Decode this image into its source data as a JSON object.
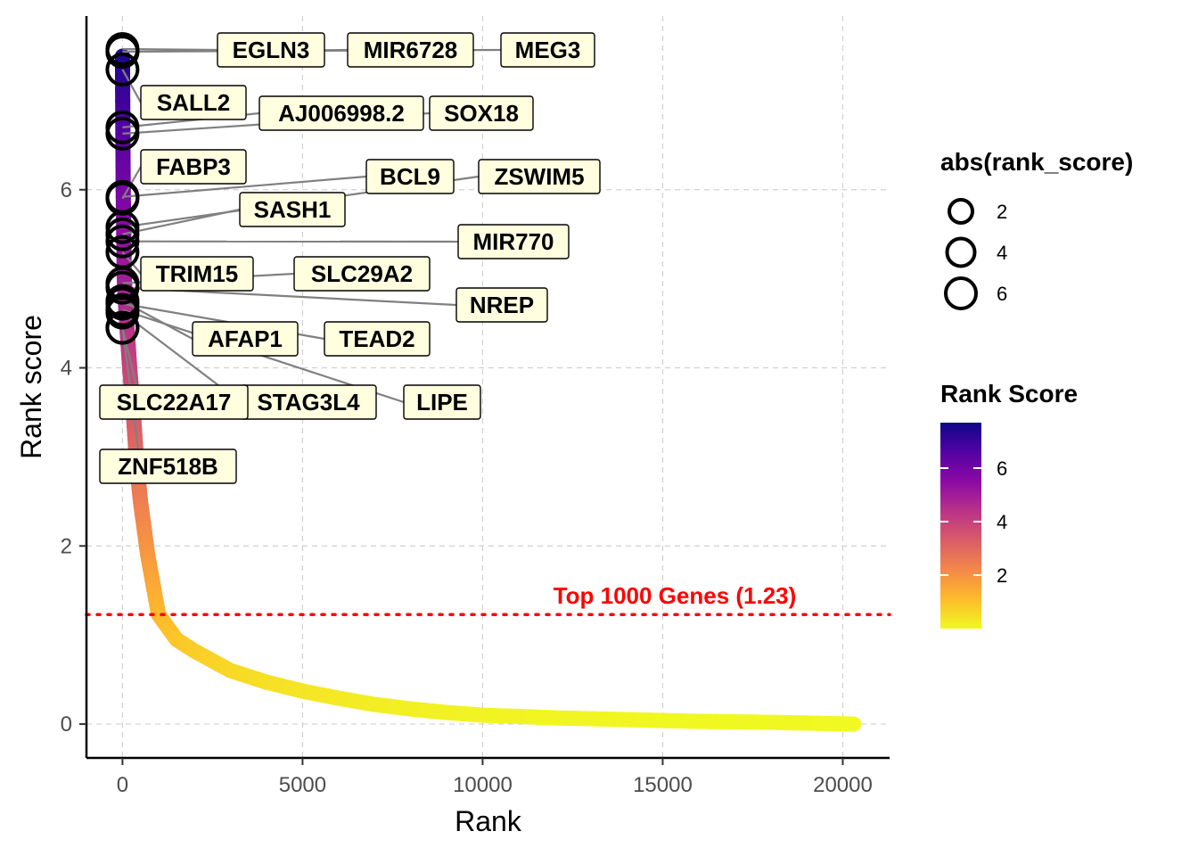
{
  "chart_data": {
    "type": "scatter",
    "xlabel": "Rank",
    "ylabel": "Rank score",
    "xlim": [
      -1000,
      21300
    ],
    "ylim": [
      -0.38,
      7.95
    ],
    "x_ticks": [
      0,
      5000,
      10000,
      15000,
      20000
    ],
    "x_tick_labels": [
      "0",
      "5000",
      "10000",
      "15000",
      "20000"
    ],
    "y_ticks": [
      0,
      2,
      4,
      6
    ],
    "y_tick_labels": [
      "0",
      "2",
      "4",
      "6"
    ],
    "grid": "dashed",
    "curve": [
      [
        0,
        7.5
      ],
      [
        20,
        6.0
      ],
      [
        50,
        5.0
      ],
      [
        100,
        4.6
      ],
      [
        200,
        4.0
      ],
      [
        300,
        3.5
      ],
      [
        400,
        2.9
      ],
      [
        500,
        2.5
      ],
      [
        700,
        1.9
      ],
      [
        1000,
        1.23
      ],
      [
        1500,
        0.95
      ],
      [
        2000,
        0.82
      ],
      [
        3000,
        0.6
      ],
      [
        4000,
        0.47
      ],
      [
        5000,
        0.37
      ],
      [
        6000,
        0.29
      ],
      [
        7000,
        0.22
      ],
      [
        8000,
        0.17
      ],
      [
        9000,
        0.13
      ],
      [
        10000,
        0.1
      ],
      [
        12000,
        0.07
      ],
      [
        14000,
        0.05
      ],
      [
        16000,
        0.03
      ],
      [
        18000,
        0.02
      ],
      [
        20300,
        0.0
      ]
    ],
    "highlighted_genes": [
      {
        "label": "EGLN3",
        "x": 0,
        "y": 7.58
      },
      {
        "label": "MIR6728",
        "x": 0,
        "y": 7.55
      },
      {
        "label": "MEG3",
        "x": 0,
        "y": 7.55
      },
      {
        "label": "SALL2",
        "x": 0,
        "y": 7.35
      },
      {
        "label": "AJ006998.2",
        "x": 0,
        "y": 6.7
      },
      {
        "label": "SOX18",
        "x": 0,
        "y": 6.63
      },
      {
        "label": "FABP3",
        "x": 0,
        "y": 5.9
      },
      {
        "label": "BCL9",
        "x": 0,
        "y": 5.92
      },
      {
        "label": "ZSWIM5",
        "x": 0,
        "y": 5.58
      },
      {
        "label": "SASH1",
        "x": 0,
        "y": 5.5
      },
      {
        "label": "MIR770",
        "x": 0,
        "y": 5.42
      },
      {
        "label": "TRIM15",
        "x": 0,
        "y": 5.3
      },
      {
        "label": "SLC29A2",
        "x": 0,
        "y": 4.95
      },
      {
        "label": "NREP",
        "x": 0,
        "y": 4.9
      },
      {
        "label": "AFAP1",
        "x": 0,
        "y": 4.75
      },
      {
        "label": "TEAD2",
        "x": 0,
        "y": 4.72
      },
      {
        "label": "LIPE",
        "x": 0,
        "y": 4.65
      },
      {
        "label": "STAG3L4",
        "x": 0,
        "y": 4.62
      },
      {
        "label": "SLC22A17",
        "x": 0,
        "y": 4.45
      },
      {
        "label": "ZNF518B",
        "x": 0,
        "y": 4.45
      }
    ],
    "threshold": {
      "y": 1.23,
      "label": "Top 1000 Genes (1.23)",
      "color": "#ff0000"
    },
    "legend_size": {
      "title": "abs(rank_score)",
      "values": [
        "2",
        "4",
        "6"
      ]
    },
    "legend_color": {
      "title": "Rank Score",
      "ticks": [
        6,
        4,
        2
      ],
      "tick_labels": [
        "6",
        "4",
        "2"
      ],
      "range": [
        0,
        7.7
      ],
      "palette": "plasma"
    }
  }
}
